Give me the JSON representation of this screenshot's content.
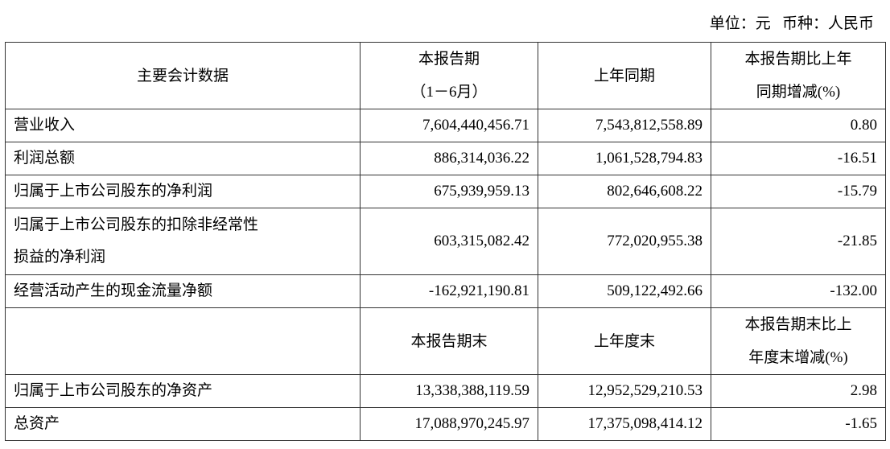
{
  "unit_note": "单位：元   币种：人民币",
  "header1": [
    "主要会计数据",
    "本报告期",
    "（1－6月）",
    "上年同期",
    "本报告期比上年",
    "同期增减(%)"
  ],
  "rows1": [
    {
      "label": "营业收入",
      "current": "7,604,440,456.71",
      "prior": "7,543,812,558.89",
      "change": "0.80"
    },
    {
      "label": "利润总额",
      "current": "886,314,036.22",
      "prior": "1,061,528,794.83",
      "change": "-16.51"
    },
    {
      "label": "归属于上市公司股东的净利润",
      "current": "675,939,959.13",
      "prior": "802,646,608.22",
      "change": "-15.79"
    },
    {
      "label": "归属于上市公司股东的扣除非经常性",
      "label2": "损益的净利润",
      "current": "603,315,082.42",
      "prior": "772,020,955.38",
      "change": "-21.85"
    },
    {
      "label": "经营活动产生的现金流量净额",
      "current": "-162,921,190.81",
      "prior": "509,122,492.66",
      "change": "-132.00"
    }
  ],
  "header2": [
    "",
    "本报告期末",
    "上年度末",
    "本报告期末比上",
    "年度末增减(%)"
  ],
  "rows2": [
    {
      "label": "归属于上市公司股东的净资产",
      "current": "13,338,388,119.59",
      "prior": "12,952,529,210.53",
      "change": "2.98"
    },
    {
      "label": "总资产",
      "current": "17,088,970,245.97",
      "prior": "17,375,098,414.12",
      "change": "-1.65"
    }
  ]
}
